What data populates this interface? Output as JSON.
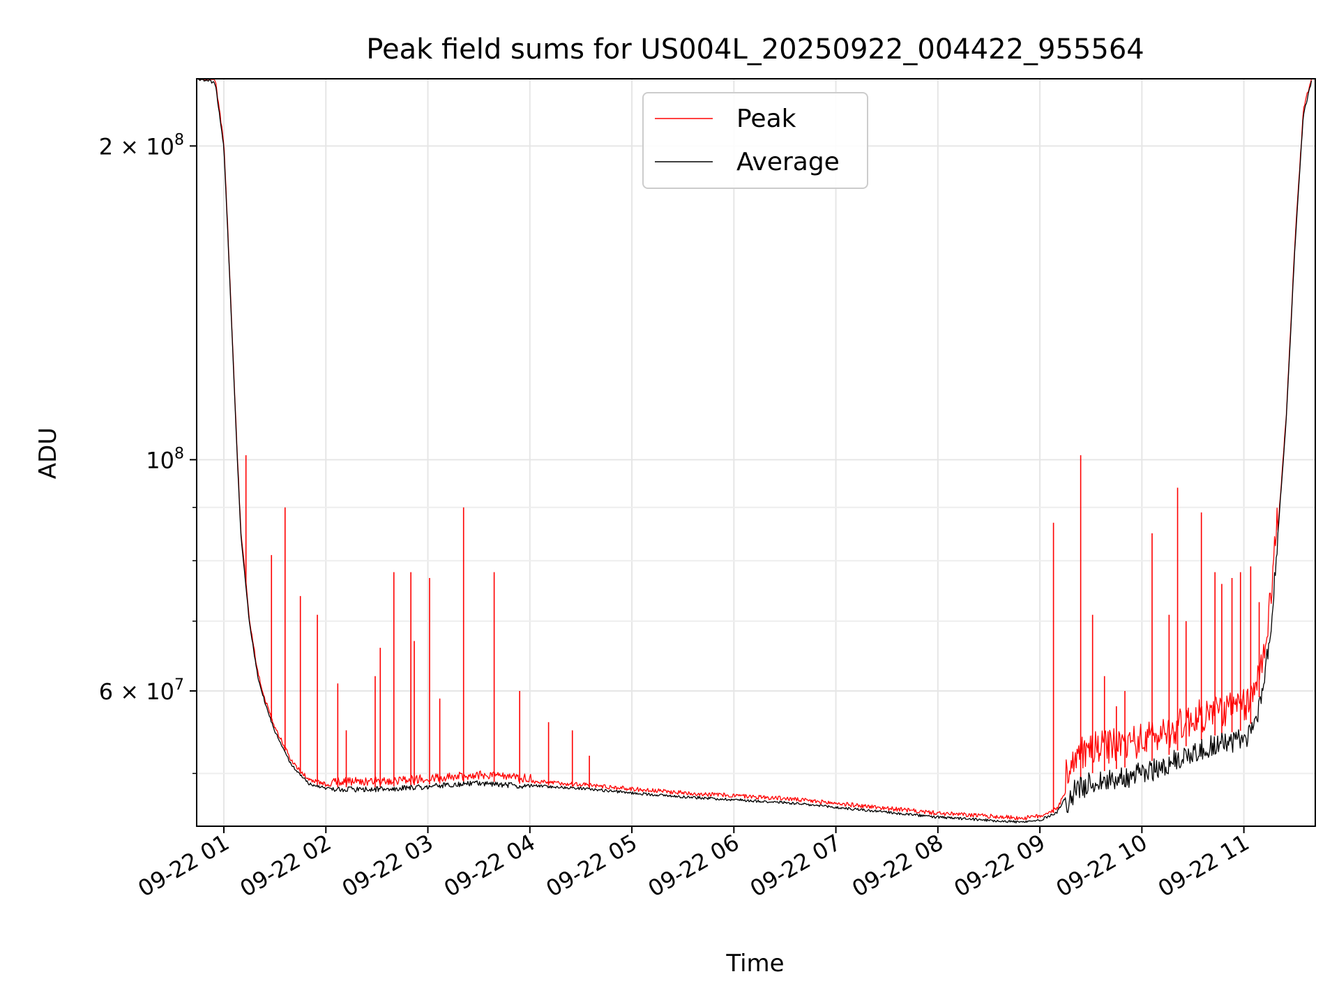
{
  "chart_data": {
    "type": "line",
    "title": "Peak field sums for US004L_20250922_004422_955564",
    "xlabel": "Time",
    "ylabel": "ADU",
    "y_scale": "log",
    "ylim": [
      44500000,
      232000000
    ],
    "xlim": [
      "2025-09-22 00:44",
      "2025-09-22 11:42"
    ],
    "grid": true,
    "legend_position": "top-center",
    "colors": {
      "Peak": "#ff0000",
      "Average": "#000000"
    },
    "x_ticks": [
      {
        "t": "2025-09-22 01:00",
        "label": "09-22 01"
      },
      {
        "t": "2025-09-22 02:00",
        "label": "09-22 02"
      },
      {
        "t": "2025-09-22 03:00",
        "label": "09-22 03"
      },
      {
        "t": "2025-09-22 04:00",
        "label": "09-22 04"
      },
      {
        "t": "2025-09-22 05:00",
        "label": "09-22 05"
      },
      {
        "t": "2025-09-22 06:00",
        "label": "09-22 06"
      },
      {
        "t": "2025-09-22 07:00",
        "label": "09-22 07"
      },
      {
        "t": "2025-09-22 08:00",
        "label": "09-22 08"
      },
      {
        "t": "2025-09-22 09:00",
        "label": "09-22 09"
      },
      {
        "t": "2025-09-22 10:00",
        "label": "09-22 10"
      },
      {
        "t": "2025-09-22 11:00",
        "label": "09-22 11"
      }
    ],
    "y_ticks": [
      {
        "value": 200000000,
        "mantissa": "2",
        "base": "10",
        "exp": "8"
      },
      {
        "value": 100000000,
        "mantissa": "",
        "base": "10",
        "exp": "8"
      },
      {
        "value": 60000000,
        "mantissa": "6",
        "base": "10",
        "exp": "7"
      }
    ],
    "y_minor_ticks": [
      50000000,
      70000000,
      80000000,
      90000000
    ],
    "series": [
      {
        "name": "Average",
        "x": [
          "2025-09-22 00:45",
          "2025-09-22 00:50",
          "2025-09-22 00:55",
          "2025-09-22 01:00",
          "2025-09-22 01:02",
          "2025-09-22 01:05",
          "2025-09-22 01:08",
          "2025-09-22 01:10",
          "2025-09-22 01:15",
          "2025-09-22 01:20",
          "2025-09-22 01:25",
          "2025-09-22 01:30",
          "2025-09-22 01:40",
          "2025-09-22 01:50",
          "2025-09-22 02:00",
          "2025-09-22 02:30",
          "2025-09-22 03:00",
          "2025-09-22 03:30",
          "2025-09-22 04:00",
          "2025-09-22 04:30",
          "2025-09-22 05:00",
          "2025-09-22 05:30",
          "2025-09-22 06:00",
          "2025-09-22 06:30",
          "2025-09-22 07:00",
          "2025-09-22 07:30",
          "2025-09-22 08:00",
          "2025-09-22 08:30",
          "2025-09-22 08:50",
          "2025-09-22 09:00",
          "2025-09-22 09:10",
          "2025-09-22 09:20",
          "2025-09-22 09:30",
          "2025-09-22 09:45",
          "2025-09-22 10:00",
          "2025-09-22 10:15",
          "2025-09-22 10:30",
          "2025-09-22 10:45",
          "2025-09-22 11:00",
          "2025-09-22 11:05",
          "2025-09-22 11:10",
          "2025-09-22 11:15",
          "2025-09-22 11:20",
          "2025-09-22 11:25",
          "2025-09-22 11:30",
          "2025-09-22 11:35",
          "2025-09-22 11:40"
        ],
        "values": [
          232000000,
          232000000,
          230000000,
          200000000,
          170000000,
          130000000,
          100000000,
          85000000,
          70000000,
          62000000,
          58000000,
          55000000,
          51000000,
          49000000,
          48500000,
          48500000,
          48800000,
          49200000,
          48800000,
          48500000,
          48000000,
          47600000,
          47300000,
          47000000,
          46500000,
          46000000,
          45500000,
          45200000,
          45000000,
          45200000,
          46000000,
          49000000,
          50000000,
          50500000,
          51000000,
          52000000,
          53500000,
          54500000,
          55000000,
          56000000,
          60000000,
          68000000,
          85000000,
          110000000,
          160000000,
          215000000,
          232000000
        ]
      },
      {
        "name": "Peak",
        "spikes": [
          {
            "t": "2025-09-22 01:13",
            "value": 101000000
          },
          {
            "t": "2025-09-22 01:28",
            "value": 81000000
          },
          {
            "t": "2025-09-22 01:36",
            "value": 90000000
          },
          {
            "t": "2025-09-22 01:45",
            "value": 74000000
          },
          {
            "t": "2025-09-22 01:55",
            "value": 71000000
          },
          {
            "t": "2025-09-22 02:07",
            "value": 61000000
          },
          {
            "t": "2025-09-22 02:12",
            "value": 55000000
          },
          {
            "t": "2025-09-22 02:29",
            "value": 62000000
          },
          {
            "t": "2025-09-22 02:32",
            "value": 66000000
          },
          {
            "t": "2025-09-22 02:40",
            "value": 78000000
          },
          {
            "t": "2025-09-22 02:50",
            "value": 78000000
          },
          {
            "t": "2025-09-22 02:52",
            "value": 67000000
          },
          {
            "t": "2025-09-22 03:01",
            "value": 77000000
          },
          {
            "t": "2025-09-22 03:07",
            "value": 59000000
          },
          {
            "t": "2025-09-22 03:21",
            "value": 90000000
          },
          {
            "t": "2025-09-22 03:39",
            "value": 78000000
          },
          {
            "t": "2025-09-22 03:54",
            "value": 60000000
          },
          {
            "t": "2025-09-22 04:11",
            "value": 56000000
          },
          {
            "t": "2025-09-22 04:25",
            "value": 55000000
          },
          {
            "t": "2025-09-22 04:35",
            "value": 52000000
          },
          {
            "t": "2025-09-22 09:08",
            "value": 87000000
          },
          {
            "t": "2025-09-22 09:24",
            "value": 101000000
          },
          {
            "t": "2025-09-22 09:31",
            "value": 71000000
          },
          {
            "t": "2025-09-22 09:38",
            "value": 62000000
          },
          {
            "t": "2025-09-22 09:45",
            "value": 58000000
          },
          {
            "t": "2025-09-22 09:50",
            "value": 60000000
          },
          {
            "t": "2025-09-22 10:06",
            "value": 85000000
          },
          {
            "t": "2025-09-22 10:16",
            "value": 71000000
          },
          {
            "t": "2025-09-22 10:21",
            "value": 94000000
          },
          {
            "t": "2025-09-22 10:26",
            "value": 70000000
          },
          {
            "t": "2025-09-22 10:35",
            "value": 89000000
          },
          {
            "t": "2025-09-22 10:43",
            "value": 78000000
          },
          {
            "t": "2025-09-22 10:47",
            "value": 76000000
          },
          {
            "t": "2025-09-22 10:53",
            "value": 77000000
          },
          {
            "t": "2025-09-22 10:58",
            "value": 78000000
          },
          {
            "t": "2025-09-22 11:04",
            "value": 79000000
          },
          {
            "t": "2025-09-22 11:09",
            "value": 73000000
          }
        ]
      }
    ]
  }
}
